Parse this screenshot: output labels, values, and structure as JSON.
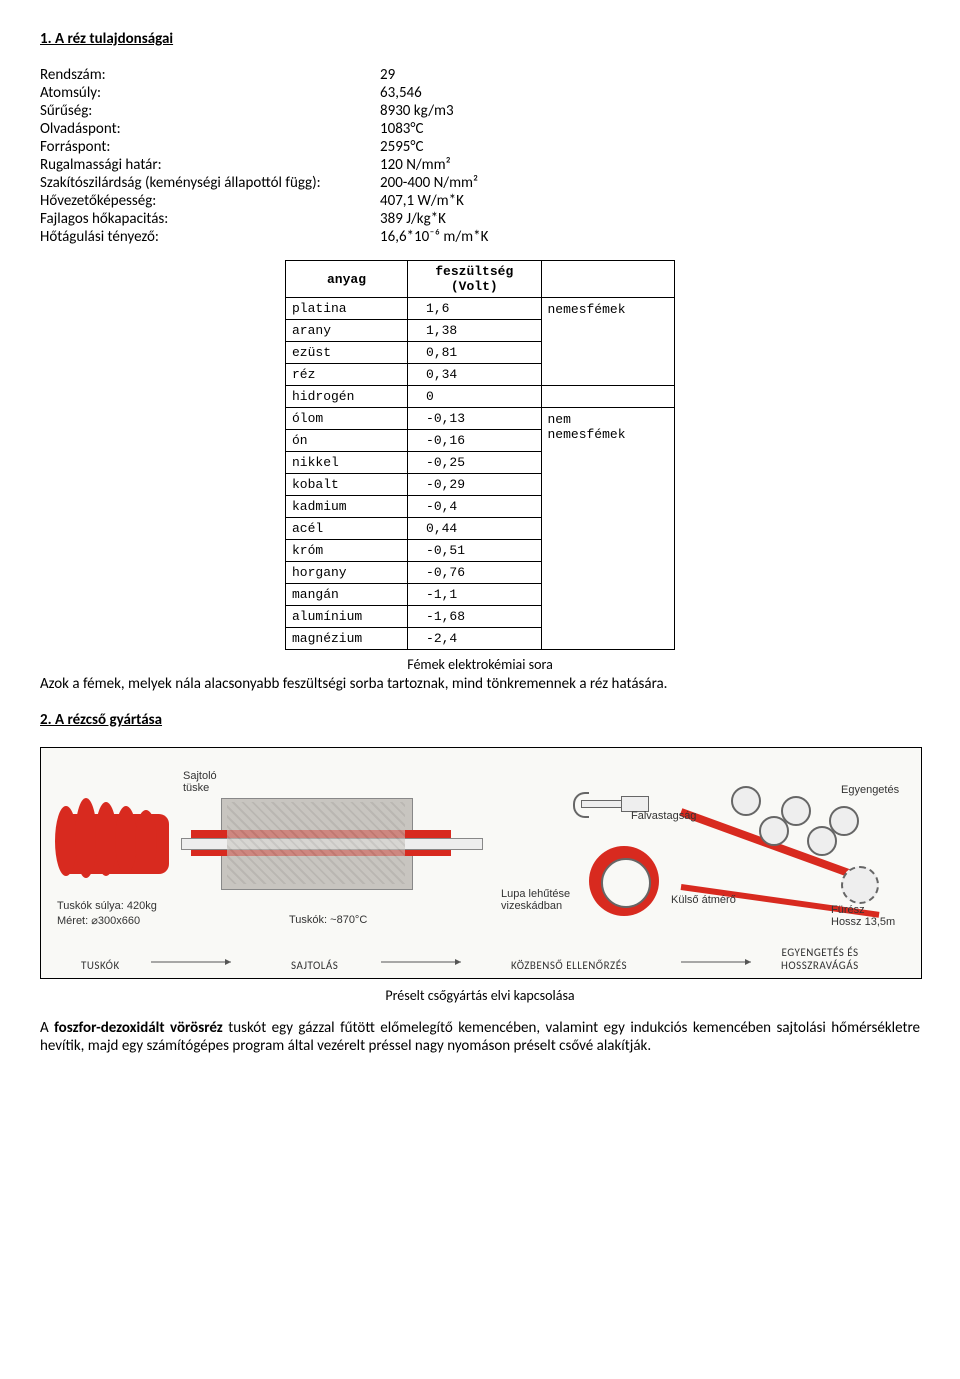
{
  "section1": {
    "title": "1. A réz tulajdonságai",
    "properties": [
      {
        "label": "Rendszám:",
        "value": "29"
      },
      {
        "label": "Atomsúly:",
        "value": "63,546"
      },
      {
        "label": "Sűrűség:",
        "value": "8930 kg/m3"
      },
      {
        "label": "Olvadáspont:",
        "value": "1083°C"
      },
      {
        "label": "Forráspont:",
        "value": "2595°C"
      },
      {
        "label": "Rugalmassági határ:",
        "value": "120 N/mm²"
      },
      {
        "label": "Szakítószilárdság (keménységi állapottól függ):",
        "value": "200-400 N/mm²"
      },
      {
        "label": "Hővezetőképesség:",
        "value": "407,1 W/m*K"
      },
      {
        "label": "Fajlagos hőkapacitás:",
        "value": "389 J/kg*K"
      },
      {
        "label": "Hőtágulási tényező:",
        "value": "16,6*10⁻⁶ m/m*K"
      }
    ]
  },
  "voltage_table": {
    "headers": {
      "col1": "anyag",
      "col2": "feszültség\n(Volt)",
      "col3": ""
    },
    "rows": [
      {
        "material": "platina",
        "value": "1,6",
        "group_start": true,
        "group_label": "nemesfémek",
        "group_span": 4
      },
      {
        "material": "arany",
        "value": "1,38"
      },
      {
        "material": "ezüst",
        "value": "0,81"
      },
      {
        "material": "réz",
        "value": "0,34"
      },
      {
        "material": "hidrogén",
        "value": "0",
        "group_start": true,
        "group_label": "",
        "group_span": 1
      },
      {
        "material": "ólom",
        "value": "-0,13",
        "group_start": true,
        "group_label": "nem\nnemesfémek",
        "group_span": 11
      },
      {
        "material": "ón",
        "value": "-0,16"
      },
      {
        "material": "nikkel",
        "value": "-0,25"
      },
      {
        "material": "kobalt",
        "value": "-0,29"
      },
      {
        "material": "kadmium",
        "value": "-0,4"
      },
      {
        "material": "acél",
        "value": "0,44"
      },
      {
        "material": "króm",
        "value": "-0,51"
      },
      {
        "material": "horgany",
        "value": "-0,76"
      },
      {
        "material": "mangán",
        "value": "-1,1"
      },
      {
        "material": "alumínium",
        "value": "-1,68"
      },
      {
        "material": "magnézium",
        "value": "-2,4"
      }
    ],
    "caption": "Fémek elektrokémiai sora",
    "note": "Azok a fémek, melyek nála alacsonyabb feszültségi sorba tartoznak, mind tönkremennek a réz hatására."
  },
  "section2": {
    "title": "2. A rézcső gyártása",
    "diagram": {
      "labels": {
        "sajto_tuske": "Sajtoló\ntüske",
        "tusko_sulya": "Tuskók súlya: 420kg",
        "meret": "Méret: ⌀300x660",
        "tuskok_temp": "Tuskók: ~870°C",
        "falvastagsag": "Falvastagság",
        "lupa": "Lupa lehűtése\nvizeskádban",
        "kulso_atmero": "Külső átmérő",
        "egyengetes": "Egyengetés",
        "furesz": "Fürész\nHossz 13,5m",
        "stage1": "TUSKÓK",
        "stage2": "SAJTOLÁS",
        "stage3": "KÖZBENSŐ ELLENŐRZÉS",
        "stage4": "EGYENGETÉS ÉS\nHOSSZRAVÁGÁS"
      }
    },
    "diagram_caption": "Préselt csőgyártás elvi kapcsolása",
    "paragraph_prefix": "A ",
    "paragraph_bold": "foszfor-dezoxidált vörösréz",
    "paragraph_rest": " tuskót egy gázzal fűtött előmelegítő kemencében, valamint egy indukciós kemencében sajtolási hőmérsékletre hevítik, majd egy számítógépes program által vezérelt préssel nagy nyomáson préselt csővé alakítják."
  }
}
